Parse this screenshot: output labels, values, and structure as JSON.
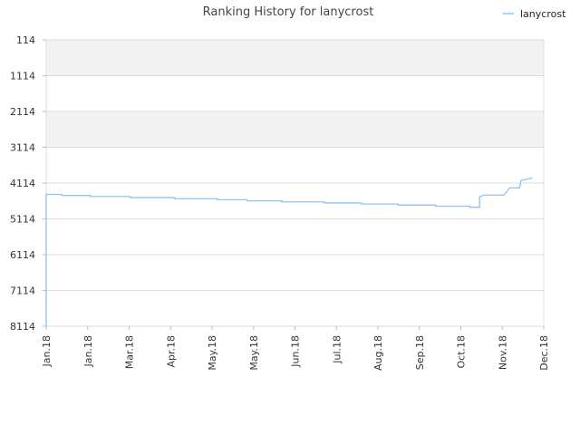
{
  "chart_data": {
    "type": "line",
    "title": "Ranking History for lanycrost",
    "xlabel": "",
    "ylabel": "",
    "y_inverted": true,
    "ylim": [
      8114,
      114
    ],
    "y_ticks": [
      "114",
      "1114",
      "2114",
      "3114",
      "4114",
      "5114",
      "6114",
      "7114",
      "8114"
    ],
    "x_ticks": [
      "Jan.18",
      "Jan.18",
      "Mar.18",
      "Apr.18",
      "May.18",
      "May.18",
      "Jun.18",
      "Jul.18",
      "Aug.18",
      "Sep.18",
      "Oct.18",
      "Nov.18",
      "Dec.18"
    ],
    "grid": true,
    "band_color": "#f2f2f2",
    "legend": {
      "position": "top-right"
    },
    "series": [
      {
        "name": "lanycrost",
        "color": "#90c4f0",
        "points": [
          [
            "2018-01-01",
            8114
          ],
          [
            "2018-01-01",
            4430
          ],
          [
            "2018-01-12",
            4430
          ],
          [
            "2018-01-12",
            4460
          ],
          [
            "2018-02-01",
            4460
          ],
          [
            "2018-02-01",
            4490
          ],
          [
            "2018-03-01",
            4490
          ],
          [
            "2018-03-01",
            4520
          ],
          [
            "2018-04-01",
            4520
          ],
          [
            "2018-04-01",
            4550
          ],
          [
            "2018-05-01",
            4550
          ],
          [
            "2018-05-01",
            4580
          ],
          [
            "2018-05-22",
            4580
          ],
          [
            "2018-05-22",
            4610
          ],
          [
            "2018-06-15",
            4610
          ],
          [
            "2018-06-15",
            4640
          ],
          [
            "2018-07-15",
            4640
          ],
          [
            "2018-07-15",
            4670
          ],
          [
            "2018-08-10",
            4670
          ],
          [
            "2018-08-10",
            4700
          ],
          [
            "2018-09-05",
            4700
          ],
          [
            "2018-09-05",
            4730
          ],
          [
            "2018-10-01",
            4730
          ],
          [
            "2018-10-01",
            4760
          ],
          [
            "2018-10-25",
            4760
          ],
          [
            "2018-10-25",
            4790
          ],
          [
            "2018-11-01",
            4790
          ],
          [
            "2018-11-01",
            4500
          ],
          [
            "2018-11-04",
            4450
          ],
          [
            "2018-11-18",
            4450
          ],
          [
            "2018-11-21",
            4310
          ],
          [
            "2018-11-22",
            4250
          ],
          [
            "2018-11-29",
            4250
          ],
          [
            "2018-11-30",
            4040
          ],
          [
            "2018-12-05",
            4000
          ],
          [
            "2018-12-08",
            3970
          ]
        ]
      }
    ]
  }
}
